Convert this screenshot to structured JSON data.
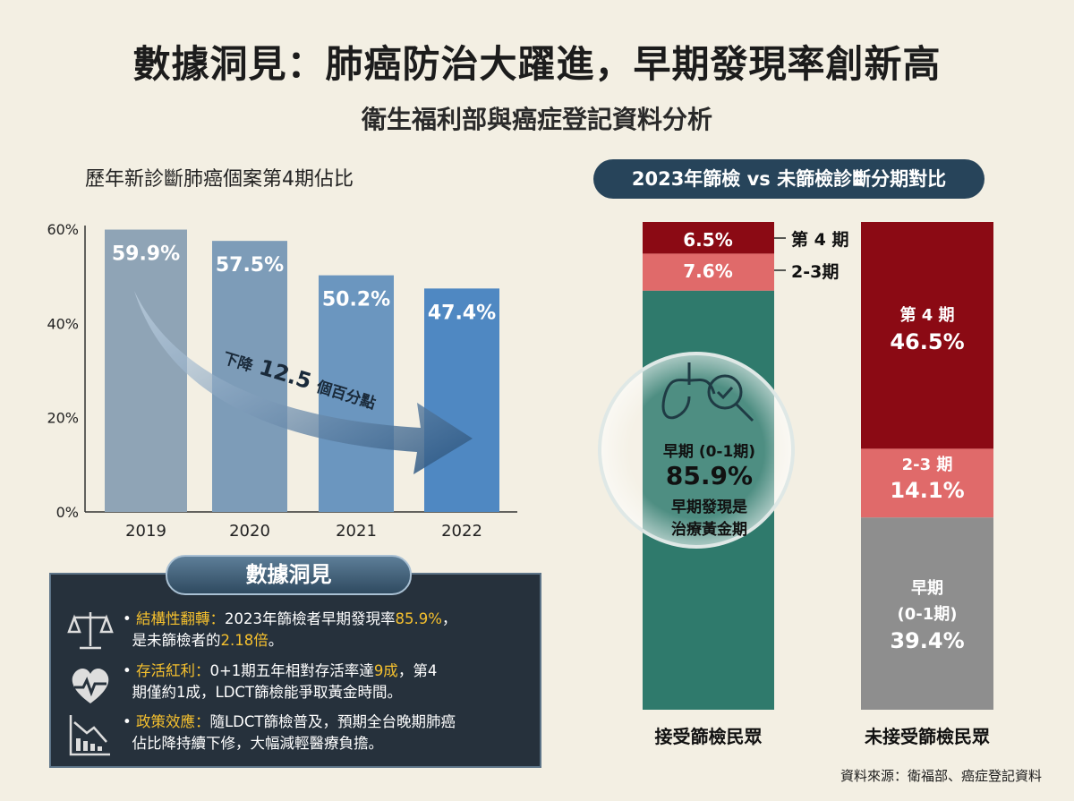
{
  "header": {
    "title": "數據洞見：肺癌防治大躍進，早期發現率創新高",
    "subtitle": "衛生福利部與癌症登記資料分析"
  },
  "chart_data": [
    {
      "type": "bar",
      "title": "歷年新診斷肺癌個案第4期佔比",
      "categories": [
        "2019",
        "2020",
        "2021",
        "2022"
      ],
      "values": [
        59.9,
        57.5,
        50.2,
        47.4
      ],
      "value_labels": [
        "59.9%",
        "57.5%",
        "50.2%",
        "47.4%"
      ],
      "ylim": [
        0,
        60
      ],
      "yticks": [
        "0%",
        "20%",
        "40%",
        "60%"
      ],
      "annotation": {
        "prefix": "下降",
        "value": "12.5",
        "suffix": "個百分點"
      },
      "colors": [
        "#8fa4b6",
        "#7d9cb8",
        "#6b96bf",
        "#4f88c2"
      ]
    },
    {
      "type": "bar",
      "stacked": true,
      "title": "2023年篩檢 vs 未篩檢診斷分期對比",
      "categories": [
        "接受篩檢民眾",
        "未接受篩檢民眾"
      ],
      "series": [
        {
          "name": "第4期",
          "values": [
            6.5,
            46.5
          ],
          "color": "#8b0a14"
        },
        {
          "name": "2-3期",
          "values": [
            7.6,
            14.1
          ],
          "color": "#e06a6a"
        },
        {
          "name": "早期 (0-1期)",
          "values": [
            85.9,
            39.4
          ],
          "colors": [
            "#2f7a6c",
            "#8e8e8e"
          ]
        }
      ],
      "labels": {
        "screened_stage4": "6.5%",
        "screened_stage23": "7.6%",
        "legend_stage4": "第 4 期",
        "legend_stage23": "2-3期",
        "screened_early_title": "早期 (0-1期)",
        "screened_early": "85.9%",
        "screened_note_1": "早期發現是",
        "screened_note_2": "治療黃金期",
        "unscreened_stage4_title": "第 4 期",
        "unscreened_stage4": "46.5%",
        "unscreened_stage23_title": "2-3 期",
        "unscreened_stage23": "14.1%",
        "unscreened_early_title_1": "早期",
        "unscreened_early_title_2": "(0-1期)",
        "unscreened_early": "39.4%"
      }
    }
  ],
  "insight": {
    "title": "數據洞見",
    "items": [
      {
        "icon": "scale-icon",
        "head": "結構性翻轉：",
        "t1": "2023年篩檢者早期發現率",
        "h1": "85.9%",
        "t2": "，",
        "t3": "是未篩檢者的",
        "h2": "2.18倍",
        "t4": "。"
      },
      {
        "icon": "heart-pulse-icon",
        "head": "存活紅利：",
        "t1": "0+1期五年相對存活率達",
        "h1": "9成",
        "t2": "，第4",
        "t3": "期僅約1成，LDCT篩檢能爭取黃金時間。"
      },
      {
        "icon": "declining-chart-icon",
        "head": "政策效應：",
        "t1": "隨LDCT篩檢普及，預期全台晚期肺癌",
        "t2": "佔比降持續下修，大幅減輕醫療負擔。"
      }
    ]
  },
  "source": "資料來源：衛福部、癌症登記資料"
}
